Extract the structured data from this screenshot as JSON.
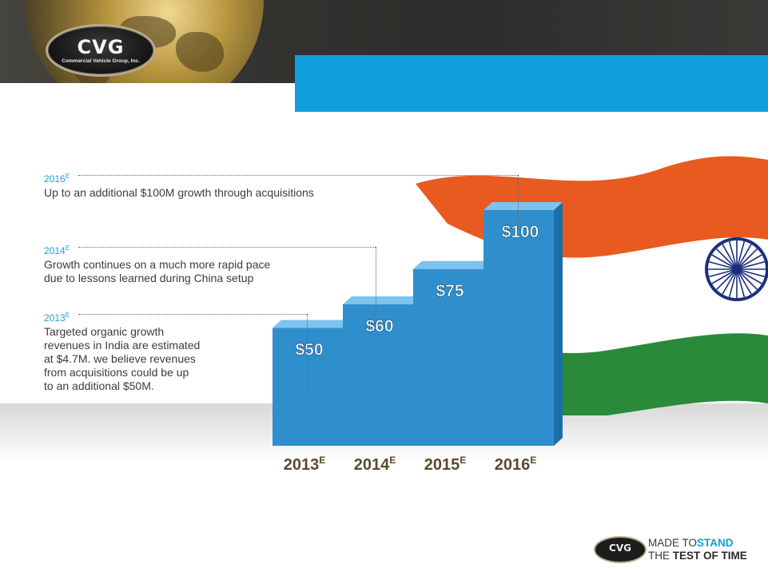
{
  "header": {
    "logo_text": "CVG",
    "logo_subtext": "Commercial Vehicle Group, Inc."
  },
  "annotations": [
    {
      "year": "2016",
      "sup": "E",
      "text": "Up to an additional $100M growth through acquisitions"
    },
    {
      "year": "2014",
      "sup": "E",
      "lines": [
        "Growth continues on a much more rapid pace",
        "due to lessons learned during China setup"
      ]
    },
    {
      "year": "2013",
      "sup": "E",
      "lines": [
        "Targeted organic growth",
        "revenues in India are estimated",
        "at $4.7M. we believe revenues",
        "from acquisitions could be up",
        "to an additional $50M."
      ]
    }
  ],
  "chart_data": {
    "type": "bar",
    "categories": [
      "2013",
      "2014",
      "2015",
      "2016"
    ],
    "category_suffix": "E",
    "values": [
      50,
      60,
      75,
      100
    ],
    "value_labels": [
      "$50",
      "$60",
      "$75",
      "$100"
    ],
    "ylim": [
      0,
      100
    ],
    "bar_color": "#2f8fcd",
    "category_label_color": "#5a4a2e"
  },
  "flag": {
    "saffron": "#e85a1f",
    "white": "#ffffff",
    "green": "#2a8a3a",
    "chakra": "#1c2f7a"
  },
  "footer": {
    "logo_text": "CVG",
    "made_to": "MADE TO",
    "stand": "STAND",
    "the": "THE",
    "test_of_time": "TEST OF TIME"
  }
}
